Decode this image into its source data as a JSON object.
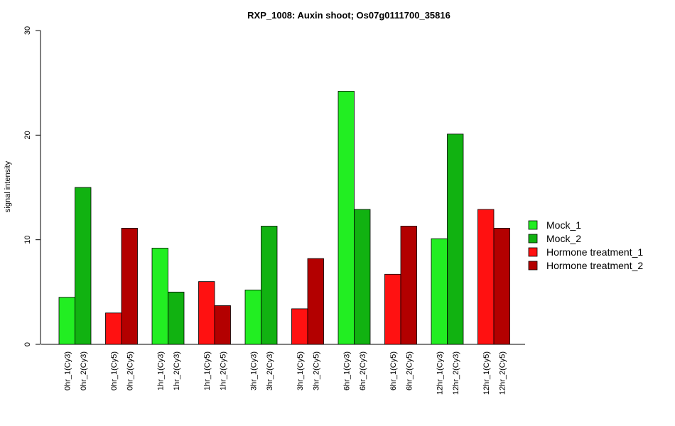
{
  "chart_data": {
    "type": "bar",
    "title": "RXP_1008: Auxin shoot; Os07g0111700_35816",
    "xlabel": "",
    "ylabel": "signal intensity",
    "ylim": [
      0,
      30
    ],
    "yticks": [
      0,
      10,
      20,
      30
    ],
    "grid": false,
    "legend_position": "right",
    "series": [
      {
        "name": "Mock_1",
        "color": "#22ee22"
      },
      {
        "name": "Mock_2",
        "color": "#11b211"
      },
      {
        "name": "Hormone treatment_1",
        "color": "#ff1111"
      },
      {
        "name": "Hormone treatment_2",
        "color": "#b30000"
      }
    ],
    "bars": [
      {
        "label": "0hr_1(Cy3)",
        "value": 4.5,
        "series": 0
      },
      {
        "label": "0hr_2(Cy3)",
        "value": 15.0,
        "series": 1
      },
      {
        "label": "0hr_1(Cy5)",
        "value": 3.0,
        "series": 2
      },
      {
        "label": "0hr_2(Cy5)",
        "value": 11.1,
        "series": 3
      },
      {
        "label": "1hr_1(Cy3)",
        "value": 9.2,
        "series": 0
      },
      {
        "label": "1hr_2(Cy3)",
        "value": 5.0,
        "series": 1
      },
      {
        "label": "1hr_1(Cy5)",
        "value": 6.0,
        "series": 2
      },
      {
        "label": "1hr_2(Cy5)",
        "value": 3.7,
        "series": 3
      },
      {
        "label": "3hr_1(Cy3)",
        "value": 5.2,
        "series": 0
      },
      {
        "label": "3hr_2(Cy3)",
        "value": 11.3,
        "series": 1
      },
      {
        "label": "3hr_1(Cy5)",
        "value": 3.4,
        "series": 2
      },
      {
        "label": "3hr_2(Cy5)",
        "value": 8.2,
        "series": 3
      },
      {
        "label": "6hr_1(Cy3)",
        "value": 24.2,
        "series": 0
      },
      {
        "label": "6hr_2(Cy3)",
        "value": 12.9,
        "series": 1
      },
      {
        "label": "6hr_1(Cy5)",
        "value": 6.7,
        "series": 2
      },
      {
        "label": "6hr_2(Cy5)",
        "value": 11.3,
        "series": 3
      },
      {
        "label": "12hr_1(Cy3)",
        "value": 10.1,
        "series": 0
      },
      {
        "label": "12hr_2(Cy3)",
        "value": 20.1,
        "series": 1
      },
      {
        "label": "12hr_1(Cy5)",
        "value": 12.9,
        "series": 2
      },
      {
        "label": "12hr_2(Cy5)",
        "value": 11.1,
        "series": 3
      }
    ]
  }
}
